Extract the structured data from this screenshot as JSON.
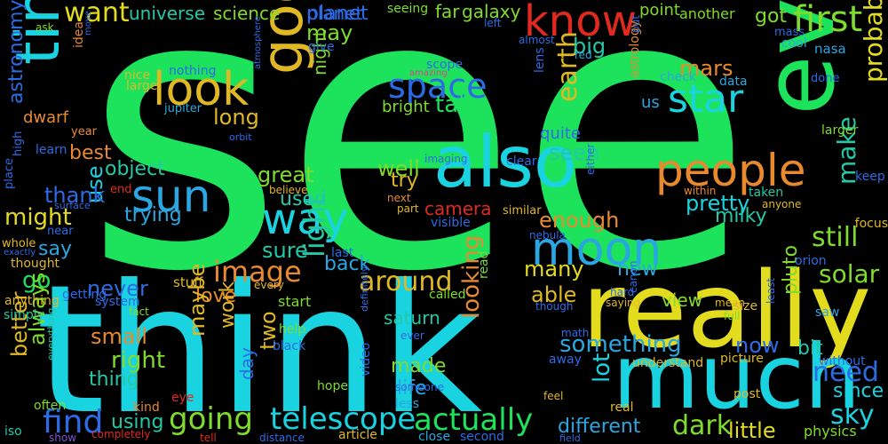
{
  "colors": {
    "background": "#000000",
    "green": "#1de35c",
    "cyan": "#19d3e0",
    "yellow": "#e3dc1e",
    "gold": "#e0b824",
    "orange": "#e8892e",
    "red": "#e12a1f",
    "blue": "#2d6be6",
    "lime": "#7fdc2a",
    "teal": "#23c9a6",
    "purple": "#7a57d6",
    "pink": "#e0408a",
    "skyblue": "#2aa7e0"
  },
  "words": [
    {
      "text": "see",
      "color": "#1de35c"
    },
    {
      "text": "think",
      "color": "#19d3e0"
    },
    {
      "text": "really",
      "color": "#e3dc1e"
    },
    {
      "text": "much",
      "color": "#19d3e0"
    },
    {
      "text": "even",
      "color": "#1de35c"
    },
    {
      "text": "also",
      "color": "#19d3e0"
    },
    {
      "text": "good",
      "color": "#e0b824"
    },
    {
      "text": "time",
      "color": "#19d3e0"
    },
    {
      "text": "know",
      "color": "#e12a1f"
    },
    {
      "text": "look",
      "color": "#e0b824"
    },
    {
      "text": "people",
      "color": "#e8892e"
    },
    {
      "text": "moon",
      "color": "#2aa7e0"
    },
    {
      "text": "sun",
      "color": "#2aa7e0"
    },
    {
      "text": "way",
      "color": "#19d3e0"
    },
    {
      "text": "star",
      "color": "#19d3e0"
    },
    {
      "text": "space",
      "color": "#2d6be6"
    },
    {
      "text": "first",
      "color": "#7fdc2a"
    },
    {
      "text": "want",
      "color": "#e3dc1e"
    },
    {
      "text": "image",
      "color": "#e8892e"
    },
    {
      "text": "light",
      "color": "#23c9a6"
    },
    {
      "text": "around",
      "color": "#e0b824"
    },
    {
      "text": "going",
      "color": "#7fdc2a"
    },
    {
      "text": "telescope",
      "color": "#19d3e0"
    },
    {
      "text": "actually",
      "color": "#1de35c"
    },
    {
      "text": "find",
      "color": "#2d6be6"
    },
    {
      "text": "something",
      "color": "#2aa7e0"
    },
    {
      "text": "need",
      "color": "#2d6be6"
    },
    {
      "text": "dark",
      "color": "#7fdc2a"
    },
    {
      "text": "sky",
      "color": "#19d3e0"
    },
    {
      "text": "solar",
      "color": "#7fdc2a"
    },
    {
      "text": "still",
      "color": "#7fdc2a"
    },
    {
      "text": "make",
      "color": "#23c9a6"
    },
    {
      "text": "probably",
      "color": "#e3dc1e"
    },
    {
      "text": "earth",
      "color": "#e0b824"
    },
    {
      "text": "take",
      "color": "#1de35c"
    },
    {
      "text": "universe",
      "color": "#23c9a6"
    },
    {
      "text": "science",
      "color": "#7fdc2a"
    },
    {
      "text": "planet",
      "color": "#2d6be6"
    },
    {
      "text": "galaxy",
      "color": "#7fdc2a"
    },
    {
      "text": "may",
      "color": "#7fdc2a"
    },
    {
      "text": "mars",
      "color": "#e8892e"
    },
    {
      "text": "got",
      "color": "#7fdc2a"
    },
    {
      "text": "big",
      "color": "#23c9a6"
    },
    {
      "text": "astronomy",
      "color": "#2d6be6"
    },
    {
      "text": "long",
      "color": "#e0b824"
    },
    {
      "text": "great",
      "color": "#7fdc2a"
    },
    {
      "text": "use",
      "color": "#19d3e0"
    },
    {
      "text": "thank",
      "color": "#2d6be6"
    },
    {
      "text": "might",
      "color": "#e3dc1e"
    },
    {
      "text": "object",
      "color": "#23c9a6"
    },
    {
      "text": "best",
      "color": "#e8892e"
    },
    {
      "text": "trying",
      "color": "#2aa7e0"
    },
    {
      "text": "used",
      "color": "#23c9a6"
    },
    {
      "text": "pretty",
      "color": "#19d3e0"
    },
    {
      "text": "milky",
      "color": "#23c9a6"
    },
    {
      "text": "seen",
      "color": "#23c9a6"
    },
    {
      "text": "well",
      "color": "#7fdc2a"
    },
    {
      "text": "try",
      "color": "#e0b824"
    },
    {
      "text": "camera",
      "color": "#e12a1f"
    },
    {
      "text": "enough",
      "color": "#e8892e"
    },
    {
      "text": "sure",
      "color": "#23c9a6"
    },
    {
      "text": "say",
      "color": "#2aa7e0"
    },
    {
      "text": "go",
      "color": "#1de35c"
    },
    {
      "text": "back",
      "color": "#2aa7e0"
    },
    {
      "text": "many",
      "color": "#e3dc1e"
    },
    {
      "text": "new",
      "color": "#2aa7e0"
    },
    {
      "text": "able",
      "color": "#e0b824"
    },
    {
      "text": "never",
      "color": "#2d6be6"
    },
    {
      "text": "love",
      "color": "#e8892e"
    },
    {
      "text": "small",
      "color": "#e8892e"
    },
    {
      "text": "right",
      "color": "#7fdc2a"
    },
    {
      "text": "thing",
      "color": "#23c9a6"
    },
    {
      "text": "better",
      "color": "#e0b824"
    },
    {
      "text": "always",
      "color": "#7fdc2a"
    },
    {
      "text": "maybe",
      "color": "#e0b824"
    },
    {
      "text": "work",
      "color": "#e0b824"
    },
    {
      "text": "two",
      "color": "#e0b824"
    },
    {
      "text": "day",
      "color": "#2d6be6"
    },
    {
      "text": "saturn",
      "color": "#23c9a6"
    },
    {
      "text": "looking",
      "color": "#e8892e"
    },
    {
      "text": "made",
      "color": "#7fdc2a"
    },
    {
      "text": "life",
      "color": "#2aa7e0"
    },
    {
      "text": "lot",
      "color": "#19d3e0"
    },
    {
      "text": "now",
      "color": "#2d6be6"
    },
    {
      "text": "view",
      "color": "#7fdc2a"
    },
    {
      "text": "pluto",
      "color": "#7fdc2a"
    },
    {
      "text": "bit",
      "color": "#23c9a6"
    },
    {
      "text": "since",
      "color": "#19d3e0"
    },
    {
      "text": "different",
      "color": "#2aa7e0"
    },
    {
      "text": "little",
      "color": "#e3dc1e"
    },
    {
      "text": "using",
      "color": "#23c9a6"
    },
    {
      "text": "planet",
      "color": "#2d6be6"
    },
    {
      "text": "point",
      "color": "#7fdc2a"
    },
    {
      "text": "another",
      "color": "#7fdc2a"
    },
    {
      "text": "far",
      "color": "#7fdc2a"
    },
    {
      "text": "seeing",
      "color": "#7fdc2a"
    },
    {
      "text": "night",
      "color": "#7fdc2a"
    },
    {
      "text": "bright",
      "color": "#7fdc2a"
    },
    {
      "text": "quite",
      "color": "#2d6be6"
    },
    {
      "text": "us",
      "color": "#2aa7e0"
    },
    {
      "text": "dwarf",
      "color": "#e8892e"
    },
    {
      "text": "scope",
      "color": "#2d6be6"
    },
    {
      "text": "give",
      "color": "#2d6be6"
    },
    {
      "text": "nice",
      "color": "#e0b824"
    },
    {
      "text": "large",
      "color": "#e0b824"
    },
    {
      "text": "nothing",
      "color": "#2d6be6"
    },
    {
      "text": "jupiter",
      "color": "#2aa7e0"
    },
    {
      "text": "orbit",
      "color": "#2d6be6"
    },
    {
      "text": "atmosphere",
      "color": "#2d6be6"
    },
    {
      "text": "astrology",
      "color": "#e8892e"
    },
    {
      "text": "lens",
      "color": "#2d6be6"
    },
    {
      "text": "data",
      "color": "#2aa7e0"
    },
    {
      "text": "check",
      "color": "#2aa7e0"
    },
    {
      "text": "done",
      "color": "#2d6be6"
    },
    {
      "text": "larger",
      "color": "#7fdc2a"
    },
    {
      "text": "nasa",
      "color": "#2aa7e0"
    },
    {
      "text": "cool",
      "color": "#2aa7e0"
    },
    {
      "text": "mass",
      "color": "#2d6be6"
    },
    {
      "text": "keep",
      "color": "#2d6be6"
    },
    {
      "text": "focus",
      "color": "#e0b824"
    },
    {
      "text": "orion",
      "color": "#2d6be6"
    },
    {
      "text": "saw",
      "color": "#2aa7e0"
    },
    {
      "text": "without",
      "color": "#2d6be6"
    },
    {
      "text": "physics",
      "color": "#7fdc2a"
    },
    {
      "text": "field",
      "color": "#2d6be6"
    },
    {
      "text": "second",
      "color": "#2d6be6"
    },
    {
      "text": "article",
      "color": "#e0b824"
    },
    {
      "text": "distance",
      "color": "#2d6be6"
    },
    {
      "text": "close",
      "color": "#2aa7e0"
    },
    {
      "text": "less",
      "color": "#2aa7e0"
    },
    {
      "text": "someone",
      "color": "#2d6be6"
    },
    {
      "text": "ever",
      "color": "#2d6be6"
    },
    {
      "text": "hope",
      "color": "#7fdc2a"
    },
    {
      "text": "video",
      "color": "#2d6be6"
    },
    {
      "text": "definitely",
      "color": "#2d6be6"
    },
    {
      "text": "black",
      "color": "#2d6be6"
    },
    {
      "text": "help",
      "color": "#7fdc2a"
    },
    {
      "text": "start",
      "color": "#7fdc2a"
    },
    {
      "text": "stuff",
      "color": "#e0b824"
    },
    {
      "text": "system",
      "color": "#2d6be6"
    },
    {
      "text": "fact",
      "color": "#7fdc2a"
    },
    {
      "text": "kind",
      "color": "#e8892e"
    },
    {
      "text": "eye",
      "color": "#e12a1f"
    },
    {
      "text": "tell",
      "color": "#e12a1f"
    },
    {
      "text": "completely",
      "color": "#e12a1f"
    },
    {
      "text": "show",
      "color": "#7a57d6"
    },
    {
      "text": "often",
      "color": "#7fdc2a"
    },
    {
      "text": "everything",
      "color": "#23c9a6"
    },
    {
      "text": "simply",
      "color": "#23c9a6"
    },
    {
      "text": "iso",
      "color": "#23c9a6"
    },
    {
      "text": "anything",
      "color": "#e0b824"
    },
    {
      "text": "thought",
      "color": "#e0b824"
    },
    {
      "text": "exactly",
      "color": "#2d6be6"
    },
    {
      "text": "whole",
      "color": "#e0b824"
    },
    {
      "text": "place",
      "color": "#2d6be6"
    },
    {
      "text": "near",
      "color": "#2d6be6"
    },
    {
      "text": "learn",
      "color": "#2d6be6"
    },
    {
      "text": "high",
      "color": "#2d6be6"
    },
    {
      "text": "year",
      "color": "#e8892e"
    },
    {
      "text": "end",
      "color": "#e12a1f"
    },
    {
      "text": "surface",
      "color": "#2d6be6"
    },
    {
      "text": "move",
      "color": "#2d6be6"
    },
    {
      "text": "ask",
      "color": "#7fdc2a"
    },
    {
      "text": "idea",
      "color": "#e8892e"
    },
    {
      "text": "left",
      "color": "#2d6be6"
    },
    {
      "text": "almost",
      "color": "#2d6be6"
    },
    {
      "text": "amazing",
      "color": "#e0408a"
    },
    {
      "text": "red",
      "color": "#2aa7e0"
    },
    {
      "text": "put",
      "color": "#2d6be6"
    },
    {
      "text": "believe",
      "color": "#e0b824"
    },
    {
      "text": "imaging",
      "color": "#2d6be6"
    },
    {
      "text": "clear",
      "color": "#2d6be6"
    },
    {
      "text": "next",
      "color": "#e8892e"
    },
    {
      "text": "part",
      "color": "#e0b824"
    },
    {
      "text": "visible",
      "color": "#2d6be6"
    },
    {
      "text": "similar",
      "color": "#e0b824"
    },
    {
      "text": "either",
      "color": "#2d6be6"
    },
    {
      "text": "within",
      "color": "#e8892e"
    },
    {
      "text": "taken",
      "color": "#23c9a6"
    },
    {
      "text": "anyone",
      "color": "#e0b824"
    },
    {
      "text": "nebula",
      "color": "#2d6be6"
    },
    {
      "text": "last",
      "color": "#2d6be6"
    },
    {
      "text": "every",
      "color": "#e0b824"
    },
    {
      "text": "getting",
      "color": "#2d6be6"
    },
    {
      "text": "called",
      "color": "#7fdc2a"
    },
    {
      "text": "read",
      "color": "#7fdc2a"
    },
    {
      "text": "though",
      "color": "#2d6be6"
    },
    {
      "text": "canon",
      "color": "#2d6be6"
    },
    {
      "text": "saying",
      "color": "#e0b824"
    },
    {
      "text": "hard",
      "color": "#2d6be6"
    },
    {
      "text": "mean",
      "color": "#e0b824"
    },
    {
      "text": "size",
      "color": "#e0b824"
    },
    {
      "text": "full",
      "color": "#7fdc2a"
    },
    {
      "text": "least",
      "color": "#2d6be6"
    },
    {
      "text": "math",
      "color": "#2d6be6"
    },
    {
      "text": "away",
      "color": "#2d6be6"
    },
    {
      "text": "understand",
      "color": "#e0b824"
    },
    {
      "text": "picture",
      "color": "#e0b824"
    },
    {
      "text": "post",
      "color": "#e0b824"
    },
    {
      "text": "real",
      "color": "#e0b824"
    },
    {
      "text": "feel",
      "color": "#e0b824"
    }
  ]
}
